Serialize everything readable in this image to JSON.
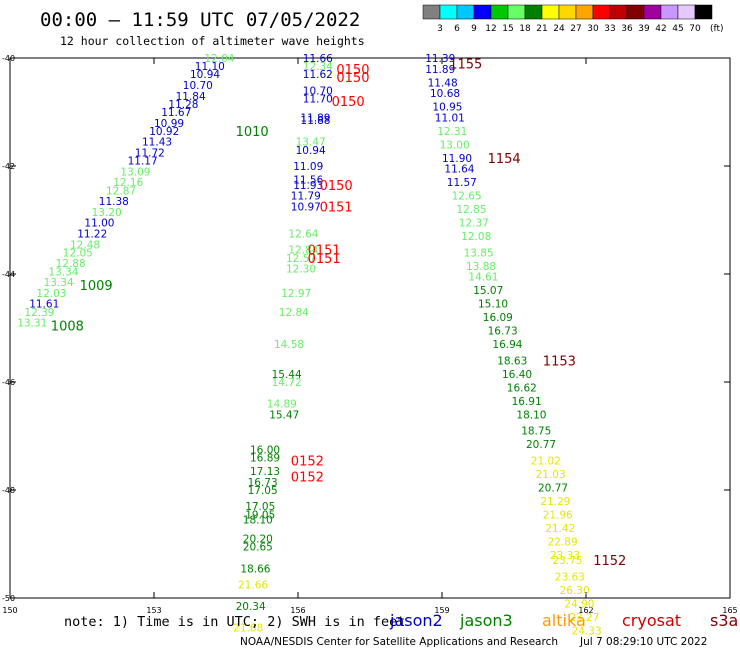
{
  "header": {
    "title": "00:00 – 11:59 UTC 07/05/2022",
    "subtitle": "12 hour collection of altimeter wave heights"
  },
  "legend": {
    "unit": "(ft)",
    "bins": [
      {
        "label": "3",
        "color": "#808080"
      },
      {
        "label": "6",
        "color": "#00ffff"
      },
      {
        "label": "9",
        "color": "#00c8ff"
      },
      {
        "label": "12",
        "color": "#0000ff"
      },
      {
        "label": "15",
        "color": "#00c800"
      },
      {
        "label": "18",
        "color": "#66ff66"
      },
      {
        "label": "21",
        "color": "#008000"
      },
      {
        "label": "24",
        "color": "#ffff00"
      },
      {
        "label": "27",
        "color": "#ffd700"
      },
      {
        "label": "30",
        "color": "#ffa500"
      },
      {
        "label": "33",
        "color": "#ff0000"
      },
      {
        "label": "36",
        "color": "#c00000"
      },
      {
        "label": "39",
        "color": "#800000"
      },
      {
        "label": "42",
        "color": "#a000a0"
      },
      {
        "label": "45",
        "color": "#c896ff"
      },
      {
        "label": "70",
        "color": "#e6c8ff"
      },
      {
        "label": "",
        "color": "#000000"
      }
    ]
  },
  "footer": {
    "note": "note: 1) Time is in UTC; 2) SWH is in feet",
    "satellites": [
      {
        "name": "jason2",
        "color": "#0000cc"
      },
      {
        "name": "jason3",
        "color": "#008000"
      },
      {
        "name": "altika",
        "color": "#ff9900"
      },
      {
        "name": "cryosat",
        "color": "#cc0000"
      },
      {
        "name": "s3a",
        "color": "#800000"
      }
    ],
    "credit": "NOAA/NESDIS Center for Satellite Applications and Research",
    "timestamp": "Jul  7 08:29:10 UTC 2022"
  },
  "chart_data": {
    "type": "scatter",
    "xlim": [
      150,
      165
    ],
    "ylim": [
      -50,
      -40
    ],
    "x_ticks": [
      "150",
      "153",
      "156",
      "159",
      "162",
      "165"
    ],
    "y_ticks": [
      "-40",
      "-42",
      "-44",
      "-46",
      "-48",
      "-50"
    ],
    "colors": {
      "blue": "#0000cc",
      "green": "#008000",
      "lgreen": "#66ee66",
      "yellow": "#e6e600",
      "darkred": "#800000",
      "red": "#ff0000"
    },
    "values": [
      {
        "x": 154.05,
        "y": -40.0,
        "v": "12.04",
        "c": "lgreen"
      },
      {
        "x": 153.85,
        "y": -40.15,
        "v": "11.10",
        "c": "blue"
      },
      {
        "x": 153.75,
        "y": -40.3,
        "v": "10.94",
        "c": "blue"
      },
      {
        "x": 153.6,
        "y": -40.5,
        "v": "10.70",
        "c": "blue"
      },
      {
        "x": 153.45,
        "y": -40.7,
        "v": "11.84",
        "c": "blue"
      },
      {
        "x": 153.3,
        "y": -40.85,
        "v": "11.28",
        "c": "blue"
      },
      {
        "x": 153.15,
        "y": -41.0,
        "v": "11.67",
        "c": "blue"
      },
      {
        "x": 153.0,
        "y": -41.2,
        "v": "10.99",
        "c": "blue"
      },
      {
        "x": 152.9,
        "y": -41.35,
        "v": "10.92",
        "c": "blue"
      },
      {
        "x": 152.75,
        "y": -41.55,
        "v": "11.43",
        "c": "blue"
      },
      {
        "x": 152.6,
        "y": -41.75,
        "v": "11.72",
        "c": "blue"
      },
      {
        "x": 152.45,
        "y": -41.9,
        "v": "11.17",
        "c": "blue"
      },
      {
        "x": 152.3,
        "y": -42.1,
        "v": "13.09",
        "c": "lgreen"
      },
      {
        "x": 152.15,
        "y": -42.3,
        "v": "12.16",
        "c": "lgreen"
      },
      {
        "x": 152.0,
        "y": -42.45,
        "v": "12.87",
        "c": "lgreen"
      },
      {
        "x": 151.85,
        "y": -42.65,
        "v": "11.38",
        "c": "blue"
      },
      {
        "x": 151.7,
        "y": -42.85,
        "v": "13.20",
        "c": "lgreen"
      },
      {
        "x": 151.55,
        "y": -43.05,
        "v": "11.00",
        "c": "blue"
      },
      {
        "x": 151.4,
        "y": -43.25,
        "v": "11.22",
        "c": "blue"
      },
      {
        "x": 151.25,
        "y": -43.45,
        "v": "12.48",
        "c": "lgreen"
      },
      {
        "x": 151.1,
        "y": -43.6,
        "v": "12.05",
        "c": "lgreen"
      },
      {
        "x": 150.95,
        "y": -43.8,
        "v": "12.88",
        "c": "lgreen"
      },
      {
        "x": 150.8,
        "y": -43.95,
        "v": "13.34",
        "c": "lgreen"
      },
      {
        "x": 150.7,
        "y": -44.15,
        "v": "13.34",
        "c": "lgreen"
      },
      {
        "x": 150.55,
        "y": -44.35,
        "v": "12.03",
        "c": "lgreen"
      },
      {
        "x": 150.4,
        "y": -44.55,
        "v": "11.61",
        "c": "blue"
      },
      {
        "x": 150.3,
        "y": -44.7,
        "v": "12.39",
        "c": "lgreen"
      },
      {
        "x": 150.15,
        "y": -44.9,
        "v": "13.31",
        "c": "lgreen"
      },
      {
        "x": 156.1,
        "y": -40.0,
        "v": "11.66",
        "c": "blue"
      },
      {
        "x": 156.1,
        "y": -40.15,
        "v": "12.34",
        "c": "lgreen"
      },
      {
        "x": 156.1,
        "y": -40.3,
        "v": "11.62",
        "c": "blue"
      },
      {
        "x": 156.1,
        "y": -40.6,
        "v": "10.70",
        "c": "blue"
      },
      {
        "x": 156.1,
        "y": -40.75,
        "v": "11.70",
        "c": "blue"
      },
      {
        "x": 156.05,
        "y": -41.1,
        "v": "11.89",
        "c": "blue"
      },
      {
        "x": 156.05,
        "y": -41.15,
        "v": "11.88",
        "c": "blue"
      },
      {
        "x": 155.95,
        "y": -41.55,
        "v": "13.47",
        "c": "lgreen"
      },
      {
        "x": 155.95,
        "y": -41.7,
        "v": "10.94",
        "c": "blue"
      },
      {
        "x": 155.9,
        "y": -42.0,
        "v": "11.09",
        "c": "blue"
      },
      {
        "x": 155.9,
        "y": -42.25,
        "v": "11.56",
        "c": "blue"
      },
      {
        "x": 155.9,
        "y": -42.35,
        "v": "11.93",
        "c": "blue"
      },
      {
        "x": 155.85,
        "y": -42.55,
        "v": "11.79",
        "c": "blue"
      },
      {
        "x": 155.85,
        "y": -42.75,
        "v": "10.97",
        "c": "blue"
      },
      {
        "x": 155.8,
        "y": -43.25,
        "v": "12.64",
        "c": "lgreen"
      },
      {
        "x": 155.8,
        "y": -43.55,
        "v": "12.84",
        "c": "lgreen"
      },
      {
        "x": 155.75,
        "y": -43.7,
        "v": "12.57",
        "c": "lgreen"
      },
      {
        "x": 155.75,
        "y": -43.9,
        "v": "12.30",
        "c": "lgreen"
      },
      {
        "x": 155.65,
        "y": -44.35,
        "v": "12.97",
        "c": "lgreen"
      },
      {
        "x": 155.6,
        "y": -44.7,
        "v": "12.84",
        "c": "lgreen"
      },
      {
        "x": 155.5,
        "y": -45.3,
        "v": "14.58",
        "c": "lgreen"
      },
      {
        "x": 155.45,
        "y": -45.85,
        "v": "15.44",
        "c": "green"
      },
      {
        "x": 155.45,
        "y": -46.0,
        "v": "14.72",
        "c": "lgreen"
      },
      {
        "x": 155.35,
        "y": -46.4,
        "v": "14.89",
        "c": "lgreen"
      },
      {
        "x": 155.4,
        "y": -46.6,
        "v": "15.47",
        "c": "green"
      },
      {
        "x": 155.0,
        "y": -47.25,
        "v": "16.00",
        "c": "green"
      },
      {
        "x": 155.0,
        "y": -47.4,
        "v": "16.89",
        "c": "green"
      },
      {
        "x": 155.0,
        "y": -47.65,
        "v": "17.13",
        "c": "green"
      },
      {
        "x": 154.95,
        "y": -47.85,
        "v": "16.73",
        "c": "green"
      },
      {
        "x": 154.95,
        "y": -48.0,
        "v": "17.05",
        "c": "green"
      },
      {
        "x": 154.9,
        "y": -48.3,
        "v": "17.05",
        "c": "green"
      },
      {
        "x": 154.9,
        "y": -48.45,
        "v": "19.05",
        "c": "green"
      },
      {
        "x": 154.85,
        "y": -48.55,
        "v": "18.10",
        "c": "green"
      },
      {
        "x": 154.85,
        "y": -48.9,
        "v": "20.20",
        "c": "green"
      },
      {
        "x": 154.85,
        "y": -49.05,
        "v": "20.65",
        "c": "green"
      },
      {
        "x": 154.8,
        "y": -49.45,
        "v": "18.66",
        "c": "green"
      },
      {
        "x": 154.75,
        "y": -49.75,
        "v": "21.66",
        "c": "yellow"
      },
      {
        "x": 154.7,
        "y": -50.15,
        "v": "20.34",
        "c": "green"
      },
      {
        "x": 154.65,
        "y": -50.55,
        "v": "21.68",
        "c": "yellow"
      },
      {
        "x": 158.65,
        "y": -40.0,
        "v": "11.39",
        "c": "blue"
      },
      {
        "x": 158.65,
        "y": -40.2,
        "v": "11.89",
        "c": "blue"
      },
      {
        "x": 158.7,
        "y": -40.45,
        "v": "11.48",
        "c": "blue"
      },
      {
        "x": 158.75,
        "y": -40.65,
        "v": "10.68",
        "c": "blue"
      },
      {
        "x": 158.8,
        "y": -40.9,
        "v": "10.95",
        "c": "blue"
      },
      {
        "x": 158.85,
        "y": -41.1,
        "v": "11.01",
        "c": "blue"
      },
      {
        "x": 158.9,
        "y": -41.35,
        "v": "12.31",
        "c": "lgreen"
      },
      {
        "x": 158.95,
        "y": -41.6,
        "v": "13.00",
        "c": "lgreen"
      },
      {
        "x": 159.0,
        "y": -41.85,
        "v": "11.90",
        "c": "blue"
      },
      {
        "x": 159.05,
        "y": -42.05,
        "v": "11.64",
        "c": "blue"
      },
      {
        "x": 159.1,
        "y": -42.3,
        "v": "11.57",
        "c": "blue"
      },
      {
        "x": 159.2,
        "y": -42.55,
        "v": "12.65",
        "c": "lgreen"
      },
      {
        "x": 159.3,
        "y": -42.8,
        "v": "12.85",
        "c": "lgreen"
      },
      {
        "x": 159.35,
        "y": -43.05,
        "v": "12.37",
        "c": "lgreen"
      },
      {
        "x": 159.4,
        "y": -43.3,
        "v": "12.08",
        "c": "lgreen"
      },
      {
        "x": 159.45,
        "y": -43.6,
        "v": "13.85",
        "c": "lgreen"
      },
      {
        "x": 159.5,
        "y": -43.85,
        "v": "13.88",
        "c": "lgreen"
      },
      {
        "x": 159.55,
        "y": -44.05,
        "v": "14.61",
        "c": "lgreen"
      },
      {
        "x": 159.65,
        "y": -44.3,
        "v": "15.07",
        "c": "green"
      },
      {
        "x": 159.75,
        "y": -44.55,
        "v": "15.10",
        "c": "green"
      },
      {
        "x": 159.85,
        "y": -44.8,
        "v": "16.09",
        "c": "green"
      },
      {
        "x": 159.95,
        "y": -45.05,
        "v": "16.73",
        "c": "green"
      },
      {
        "x": 160.05,
        "y": -45.3,
        "v": "16.94",
        "c": "green"
      },
      {
        "x": 160.15,
        "y": -45.6,
        "v": "18.63",
        "c": "green"
      },
      {
        "x": 160.25,
        "y": -45.85,
        "v": "16.40",
        "c": "green"
      },
      {
        "x": 160.35,
        "y": -46.1,
        "v": "16.62",
        "c": "green"
      },
      {
        "x": 160.45,
        "y": -46.35,
        "v": "16.91",
        "c": "green"
      },
      {
        "x": 160.55,
        "y": -46.6,
        "v": "18.10",
        "c": "green"
      },
      {
        "x": 160.65,
        "y": -46.9,
        "v": "18.75",
        "c": "green"
      },
      {
        "x": 160.75,
        "y": -47.15,
        "v": "20.77",
        "c": "green"
      },
      {
        "x": 160.85,
        "y": -47.45,
        "v": "21.02",
        "c": "yellow"
      },
      {
        "x": 160.95,
        "y": -47.7,
        "v": "21.03",
        "c": "yellow"
      },
      {
        "x": 161.0,
        "y": -47.95,
        "v": "20.77",
        "c": "green"
      },
      {
        "x": 161.05,
        "y": -48.2,
        "v": "21.29",
        "c": "yellow"
      },
      {
        "x": 161.1,
        "y": -48.45,
        "v": "21.96",
        "c": "yellow"
      },
      {
        "x": 161.15,
        "y": -48.7,
        "v": "21.42",
        "c": "yellow"
      },
      {
        "x": 161.2,
        "y": -48.95,
        "v": "22.89",
        "c": "yellow"
      },
      {
        "x": 161.25,
        "y": -49.2,
        "v": "23.33",
        "c": "yellow"
      },
      {
        "x": 161.3,
        "y": -49.3,
        "v": "23.75",
        "c": "yellow"
      },
      {
        "x": 161.35,
        "y": -49.6,
        "v": "23.63",
        "c": "yellow"
      },
      {
        "x": 161.45,
        "y": -49.85,
        "v": "26.30",
        "c": "yellow"
      },
      {
        "x": 161.55,
        "y": -50.1,
        "v": "24.90",
        "c": "yellow"
      },
      {
        "x": 161.65,
        "y": -50.35,
        "v": "23.27",
        "c": "yellow"
      },
      {
        "x": 161.7,
        "y": -50.6,
        "v": "24.33",
        "c": "yellow"
      }
    ],
    "time_labels": [
      {
        "x": 154.7,
        "y": -41.35,
        "t": "1010",
        "c": "green"
      },
      {
        "x": 151.45,
        "y": -44.2,
        "t": "1009",
        "c": "green"
      },
      {
        "x": 150.85,
        "y": -44.95,
        "t": "1008",
        "c": "green"
      },
      {
        "x": 156.8,
        "y": -40.2,
        "t": "0150",
        "c": "red"
      },
      {
        "x": 156.8,
        "y": -40.35,
        "t": "0150",
        "c": "red"
      },
      {
        "x": 156.7,
        "y": -40.8,
        "t": "0150",
        "c": "red"
      },
      {
        "x": 156.45,
        "y": -42.35,
        "t": "0150",
        "c": "red"
      },
      {
        "x": 156.45,
        "y": -42.75,
        "t": "0151",
        "c": "red"
      },
      {
        "x": 156.2,
        "y": -43.55,
        "t": "0151",
        "c": "red"
      },
      {
        "x": 156.2,
        "y": -43.7,
        "t": "0151",
        "c": "red"
      },
      {
        "x": 155.85,
        "y": -47.45,
        "t": "0152",
        "c": "red"
      },
      {
        "x": 155.85,
        "y": -47.75,
        "t": "0152",
        "c": "red"
      },
      {
        "x": 159.15,
        "y": -40.1,
        "t": "1155",
        "c": "darkred"
      },
      {
        "x": 159.95,
        "y": -41.85,
        "t": "1154",
        "c": "darkred"
      },
      {
        "x": 161.1,
        "y": -45.6,
        "t": "1153",
        "c": "darkred"
      },
      {
        "x": 162.15,
        "y": -49.3,
        "t": "1152",
        "c": "darkred"
      }
    ]
  }
}
